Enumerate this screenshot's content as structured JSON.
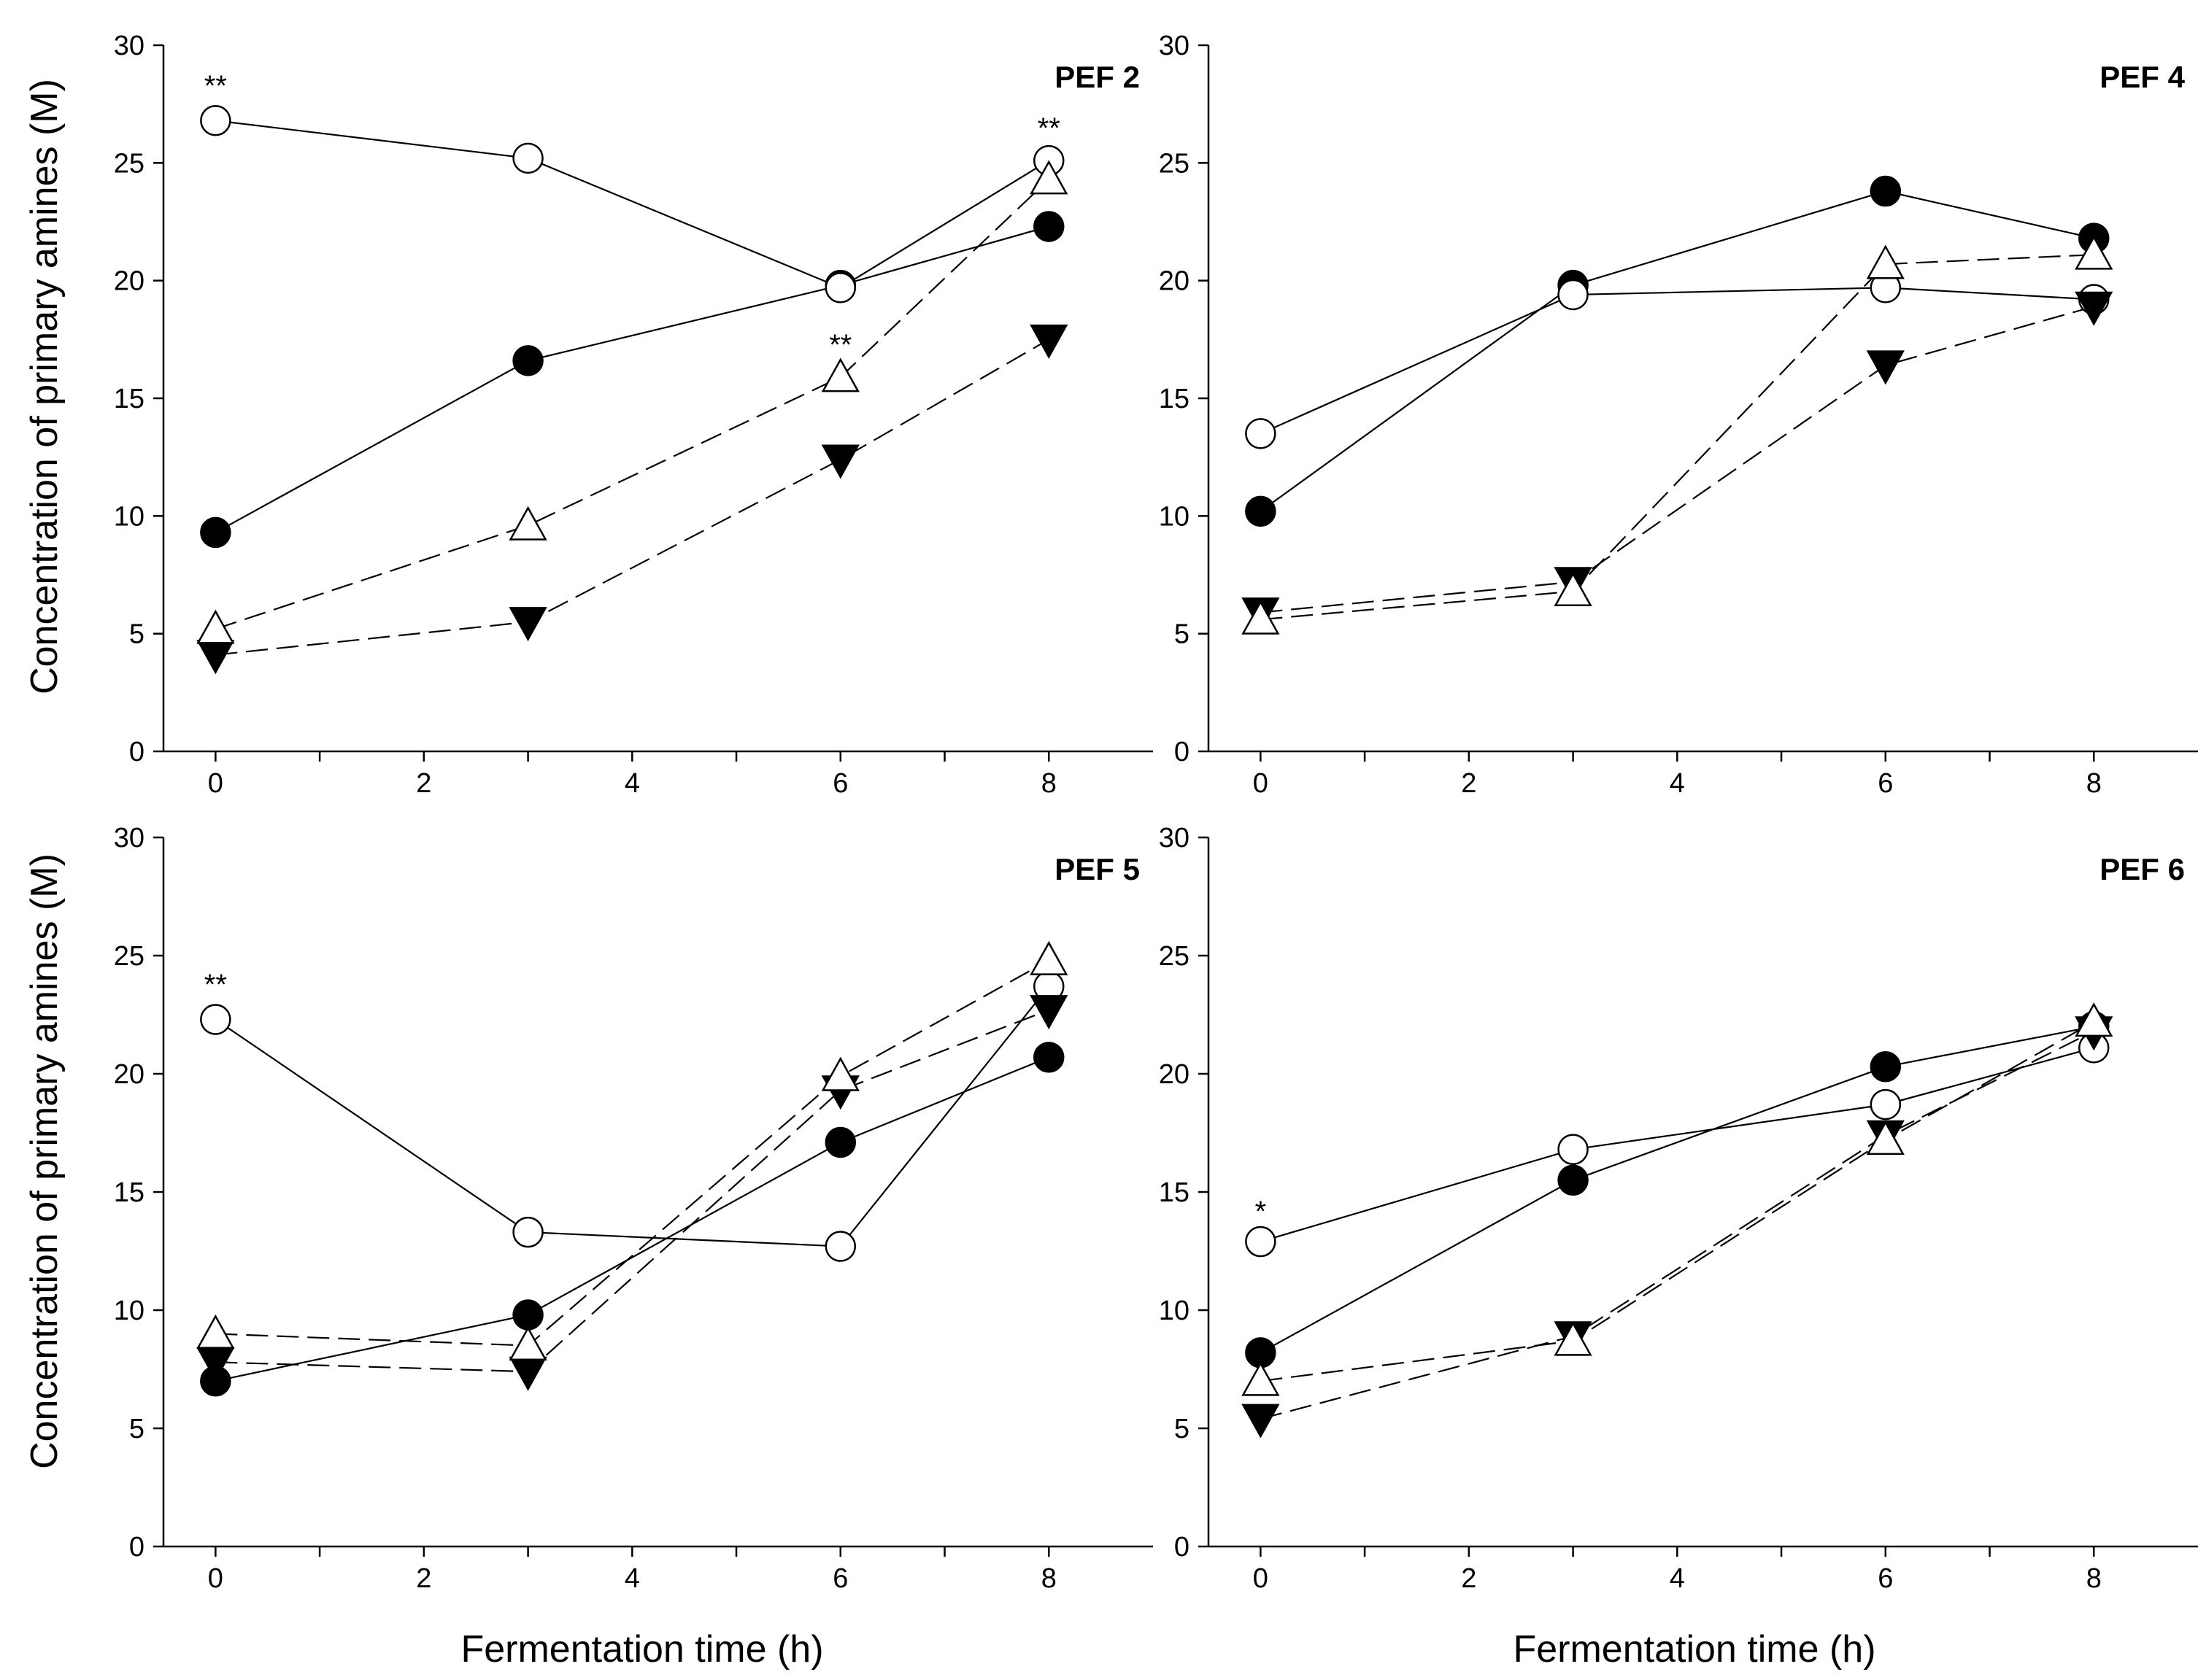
{
  "figure": {
    "ylabel": "Concentration of primary amines (M)",
    "xlabel": "Fermentation time (h)"
  },
  "chart_data": [
    {
      "type": "line",
      "title": "PEF 2",
      "xlabel": "Fermentation time (h)",
      "ylabel": "Concentration of primary amines (M)",
      "xlim": [
        -0.5,
        9
      ],
      "ylim": [
        0,
        30
      ],
      "xticks": [
        0,
        2,
        4,
        6,
        8
      ],
      "yticks": [
        0,
        5,
        10,
        15,
        20,
        25,
        30
      ],
      "series": [
        {
          "name": "filled-circle",
          "marker": "circle",
          "fill": "#000000",
          "dash": "solid",
          "x": [
            0,
            3,
            6,
            8
          ],
          "y": [
            9.3,
            16.6,
            19.8,
            22.3
          ]
        },
        {
          "name": "open-circle",
          "marker": "circle",
          "fill": "#ffffff",
          "dash": "solid",
          "x": [
            0,
            3,
            6,
            8
          ],
          "y": [
            26.8,
            25.2,
            19.7,
            25.1
          ]
        },
        {
          "name": "filled-triangle-down",
          "marker": "triangle-down",
          "fill": "#000000",
          "dash": "dashed",
          "x": [
            0,
            3,
            6,
            8
          ],
          "y": [
            4.1,
            5.5,
            12.4,
            17.5
          ]
        },
        {
          "name": "open-triangle-up",
          "marker": "triangle-up",
          "fill": "#ffffff",
          "dash": "dashed",
          "x": [
            0,
            3,
            6,
            8
          ],
          "y": [
            5.2,
            9.6,
            15.9,
            24.3
          ]
        }
      ],
      "annotations": [
        {
          "text": "**",
          "x": 0,
          "y": 28.3
        },
        {
          "text": "**",
          "x": 6,
          "y": 17.3
        },
        {
          "text": "**",
          "x": 8,
          "y": 26.5
        }
      ]
    },
    {
      "type": "line",
      "title": "PEF 4",
      "xlabel": "Fermentation time (h)",
      "ylabel": "",
      "xlim": [
        -0.5,
        9
      ],
      "ylim": [
        0,
        30
      ],
      "xticks": [
        0,
        2,
        4,
        6,
        8
      ],
      "yticks": [
        0,
        5,
        10,
        15,
        20,
        25,
        30
      ],
      "series": [
        {
          "name": "filled-circle",
          "marker": "circle",
          "fill": "#000000",
          "dash": "solid",
          "x": [
            0,
            3,
            6,
            8
          ],
          "y": [
            10.2,
            19.8,
            23.8,
            21.8
          ]
        },
        {
          "name": "open-circle",
          "marker": "circle",
          "fill": "#ffffff",
          "dash": "solid",
          "x": [
            0,
            3,
            6,
            8
          ],
          "y": [
            13.5,
            19.4,
            19.7,
            19.2
          ]
        },
        {
          "name": "filled-triangle-down",
          "marker": "triangle-down",
          "fill": "#000000",
          "dash": "dashed",
          "x": [
            0,
            3,
            6,
            8
          ],
          "y": [
            5.9,
            7.2,
            16.4,
            18.9
          ]
        },
        {
          "name": "open-triangle-up",
          "marker": "triangle-up",
          "fill": "#ffffff",
          "dash": "dashed",
          "x": [
            0,
            3,
            6,
            8
          ],
          "y": [
            5.6,
            6.8,
            20.7,
            21.1
          ]
        }
      ],
      "annotations": []
    },
    {
      "type": "line",
      "title": "PEF 5",
      "xlabel": "Fermentation time (h)",
      "ylabel": "Concentration of primary amines (M)",
      "xlim": [
        -0.5,
        9
      ],
      "ylim": [
        0,
        30
      ],
      "xticks": [
        0,
        2,
        4,
        6,
        8
      ],
      "yticks": [
        0,
        5,
        10,
        15,
        20,
        25,
        30
      ],
      "series": [
        {
          "name": "filled-circle",
          "marker": "circle",
          "fill": "#000000",
          "dash": "solid",
          "x": [
            0,
            3,
            6,
            8
          ],
          "y": [
            7.0,
            9.8,
            17.1,
            20.7
          ]
        },
        {
          "name": "open-circle",
          "marker": "circle",
          "fill": "#ffffff",
          "dash": "solid",
          "x": [
            0,
            3,
            6,
            8
          ],
          "y": [
            22.3,
            13.3,
            12.7,
            23.7
          ]
        },
        {
          "name": "filled-triangle-down",
          "marker": "triangle-down",
          "fill": "#000000",
          "dash": "dashed",
          "x": [
            0,
            3,
            6,
            8
          ],
          "y": [
            7.8,
            7.4,
            19.3,
            22.7
          ]
        },
        {
          "name": "open-triangle-up",
          "marker": "triangle-up",
          "fill": "#ffffff",
          "dash": "dashed",
          "x": [
            0,
            3,
            6,
            8
          ],
          "y": [
            9.0,
            8.5,
            19.9,
            24.8
          ]
        }
      ],
      "annotations": [
        {
          "text": "**",
          "x": 0,
          "y": 23.8
        }
      ]
    },
    {
      "type": "line",
      "title": "PEF 6",
      "xlabel": "Fermentation time (h)",
      "ylabel": "",
      "xlim": [
        -0.5,
        9
      ],
      "ylim": [
        0,
        30
      ],
      "xticks": [
        0,
        2,
        4,
        6,
        8
      ],
      "yticks": [
        0,
        5,
        10,
        15,
        20,
        25,
        30
      ],
      "series": [
        {
          "name": "filled-circle",
          "marker": "circle",
          "fill": "#000000",
          "dash": "solid",
          "x": [
            0,
            3,
            6,
            8
          ],
          "y": [
            8.2,
            15.5,
            20.3,
            22.0
          ]
        },
        {
          "name": "open-circle",
          "marker": "circle",
          "fill": "#ffffff",
          "dash": "solid",
          "x": [
            0,
            3,
            6,
            8
          ],
          "y": [
            12.9,
            16.8,
            18.7,
            21.1
          ]
        },
        {
          "name": "filled-triangle-down",
          "marker": "triangle-down",
          "fill": "#000000",
          "dash": "dashed",
          "x": [
            0,
            3,
            6,
            8
          ],
          "y": [
            5.4,
            8.9,
            17.4,
            21.8
          ]
        },
        {
          "name": "open-triangle-up",
          "marker": "triangle-up",
          "fill": "#ffffff",
          "dash": "dashed",
          "x": [
            0,
            3,
            6,
            8
          ],
          "y": [
            7.0,
            8.7,
            17.2,
            22.2
          ]
        }
      ],
      "annotations": [
        {
          "text": "*",
          "x": 0,
          "y": 14.2
        }
      ]
    }
  ]
}
